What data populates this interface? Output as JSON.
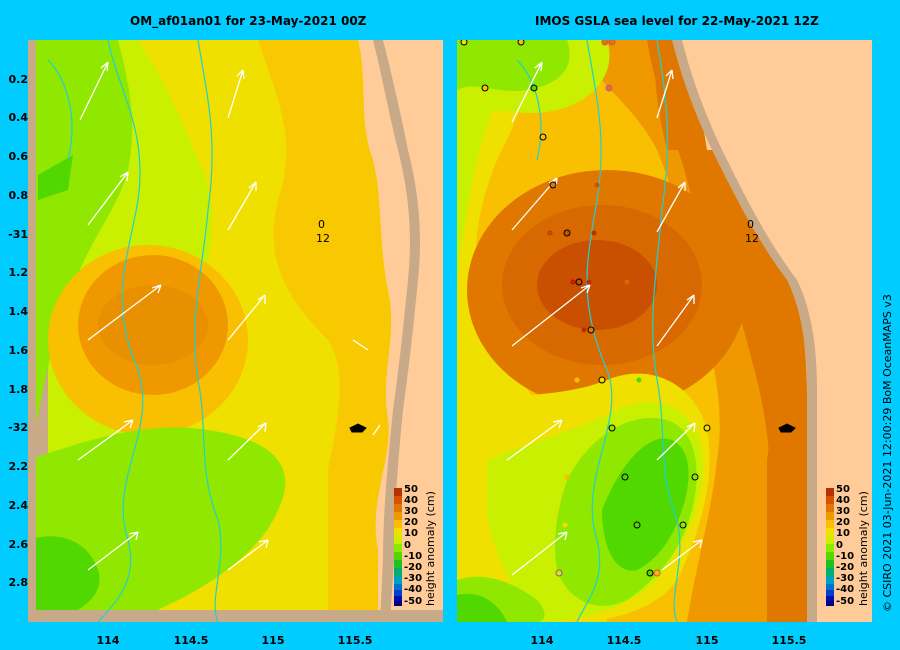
{
  "panels": {
    "left_title": "OM_af01an01  for 23-May-2021 00Z",
    "right_title": "IMOS  GSLA sea level   for 22-May-2021 12Z"
  },
  "axes": {
    "y_labels": [
      "0.2",
      "0.4",
      "0.6",
      "0.8",
      "-31",
      "1.2",
      "1.4",
      "1.6",
      "1.8",
      "-32",
      "2.2",
      "2.4",
      "2.6",
      "2.8"
    ],
    "x_labels": [
      "114",
      "114.5",
      "115",
      "115.5"
    ]
  },
  "colorbar": {
    "title": "height anomaly  (cm)",
    "ticks": [
      "50",
      "40",
      "30",
      "20",
      "10",
      "0",
      "-10",
      "-20",
      "-30",
      "-40",
      "-50"
    ],
    "colors": [
      "#b83000",
      "#d85000",
      "#e07800",
      "#f09800",
      "#f8c000",
      "#f0e000",
      "#c8f000",
      "#90e800",
      "#50d800",
      "#20c020",
      "#00b070",
      "#00a0c0",
      "#0070d0",
      "#0040d0",
      "#0010b0",
      "#000080"
    ]
  },
  "map_labels": {
    "left_mark_top": "0",
    "left_mark_bottom": "12",
    "right_mark_top": "0",
    "right_mark_bottom": "12"
  },
  "credit": "© CSIRO 2021   03-Jun-2021 12:00:29 BoM OceanMAPS v3"
}
